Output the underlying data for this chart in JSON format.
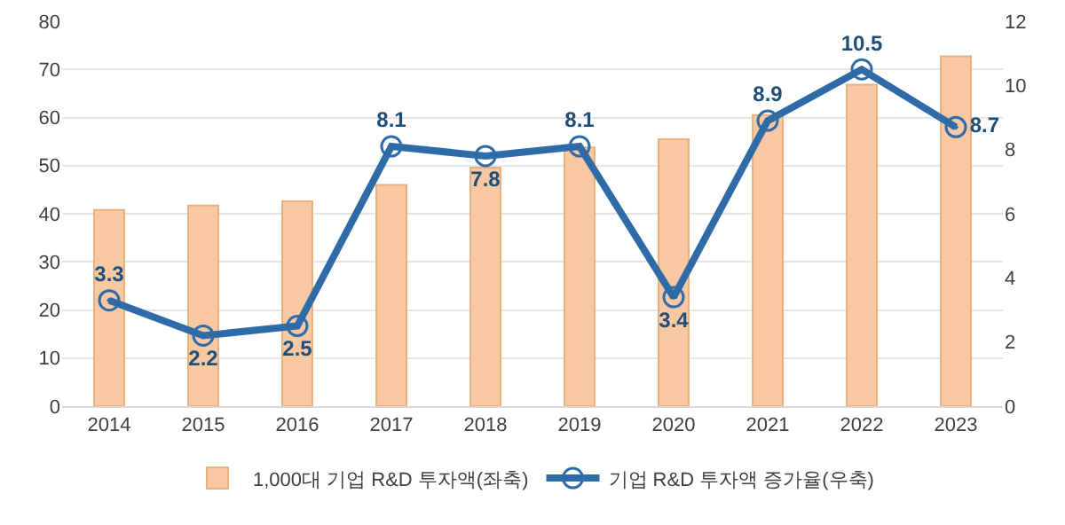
{
  "chart_data": {
    "type": "bar",
    "categories": [
      "2014",
      "2015",
      "2016",
      "2017",
      "2018",
      "2019",
      "2020",
      "2021",
      "2022",
      "2023"
    ],
    "series": [
      {
        "name": "1,000대 기업 R&D 투자액(좌축)",
        "color": "#f8c8a2",
        "values": [
          40.8,
          41.7,
          42.6,
          46.0,
          49.6,
          53.8,
          55.5,
          60.5,
          66.8,
          72.7
        ]
      },
      {
        "name": "기업 R&D 투자액 증가율(우축)",
        "type": "line",
        "axis": "y2",
        "color": "#2f6ba8",
        "marker": "circle",
        "data_labels": true,
        "values": [
          3.3,
          2.2,
          2.5,
          8.1,
          7.8,
          8.1,
          3.4,
          8.9,
          10.5,
          8.7
        ]
      }
    ],
    "ylim": [
      0,
      80
    ],
    "yticks": [
      0,
      10,
      20,
      30,
      40,
      50,
      60,
      70,
      80
    ],
    "y2lim": [
      0,
      12
    ],
    "y2ticks": [
      0,
      2,
      4,
      6,
      8,
      10,
      12
    ],
    "grid": "y",
    "legend": "bottom"
  }
}
